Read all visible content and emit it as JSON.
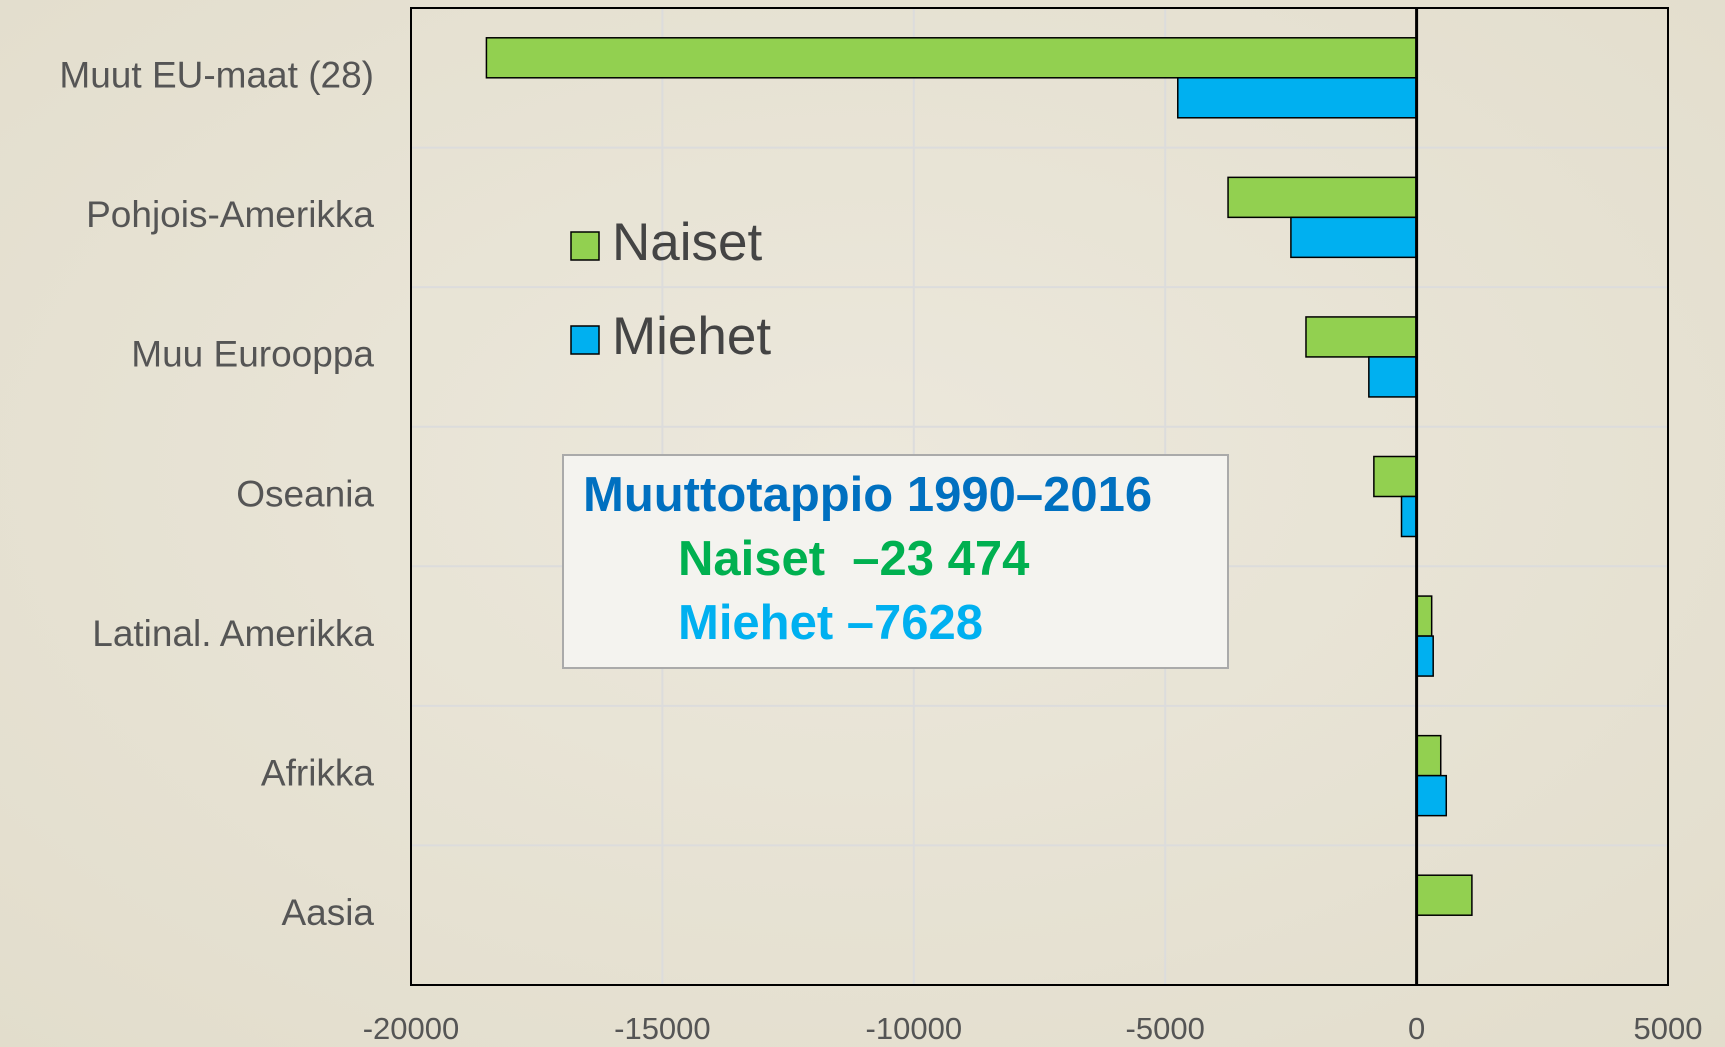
{
  "chart_data": {
    "type": "bar",
    "orientation": "horizontal",
    "categories": [
      "Muut EU-maat (28)",
      "Pohjois-Amerikka",
      "Muu Eurooppa",
      "Oseania",
      "Latinal. Amerikka",
      "Afrikka",
      "Aasia"
    ],
    "series": [
      {
        "name": "Naiset",
        "color": "#92d050",
        "values": [
          -18500,
          -3750,
          -2200,
          -850,
          300,
          480,
          1100
        ]
      },
      {
        "name": "Miehet",
        "color": "#00b0f0",
        "values": [
          -4750,
          -2500,
          -950,
          -300,
          330,
          590,
          0
        ]
      }
    ],
    "xlim": [
      -20000,
      5000
    ],
    "xticks": [
      -20000,
      -15000,
      -10000,
      -5000,
      0,
      5000
    ],
    "grid": true,
    "annotations": [
      "Muuttotappio 1990–2016",
      "Naiset  –23 474",
      "Miehet –7628"
    ]
  }
}
